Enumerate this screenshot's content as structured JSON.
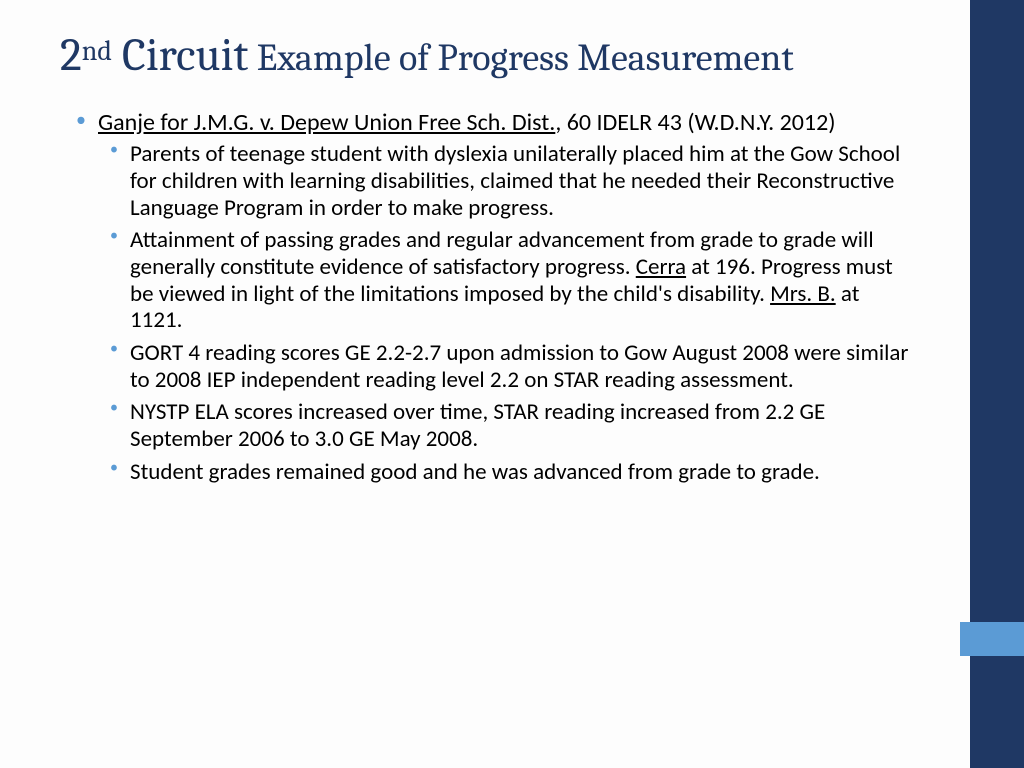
{
  "colors": {
    "title": "#1f3864",
    "bullet": "#5b9bd5",
    "sidebar_dark": "#1f3864",
    "sidebar_accent": "#5b9bd5",
    "background": "#fdfdfd",
    "body_text": "#000000"
  },
  "typography": {
    "title_font": "Cambria",
    "body_font": "Calibri",
    "title_big_pt": 46,
    "title_rest_pt": 38,
    "body_l1_pt": 24,
    "body_l2_pt": 23
  },
  "title": {
    "prefix_big": "2",
    "superscript": "nd",
    "main_big": " Circuit",
    "rest": " Example of Progress Measurement"
  },
  "case": {
    "name_underlined": "Ganje for J.M.G. v. Depew Union Free Sch. Dist.",
    "citation": ", 60 IDELR 43 (W.D.N.Y. 2012)"
  },
  "bullets": {
    "b1": "Parents of teenage student with dyslexia unilaterally placed him at the Gow School for children with learning disabilities, claimed that he needed their Reconstructive Language Program in order to make progress.",
    "b2_a": "Attainment of passing grades and regular advancement from grade to grade will generally constitute evidence of satisfactory progress.  ",
    "b2_cite1": "Cerra",
    "b2_b": " at 196.  Progress must be viewed in light of the limitations imposed by the child's disability. ",
    "b2_cite2": "Mrs. B.",
    "b2_c": " at 1121.",
    "b3": "GORT 4 reading scores GE 2.2-2.7 upon admission to Gow August 2008 were similar to 2008 IEP independent reading level 2.2 on STAR reading assessment.",
    "b4": "NYSTP ELA scores increased over time, STAR reading increased from 2.2 GE September 2006 to 3.0 GE May 2008.",
    "b5": "Student grades remained good and he was advanced from grade to grade."
  }
}
